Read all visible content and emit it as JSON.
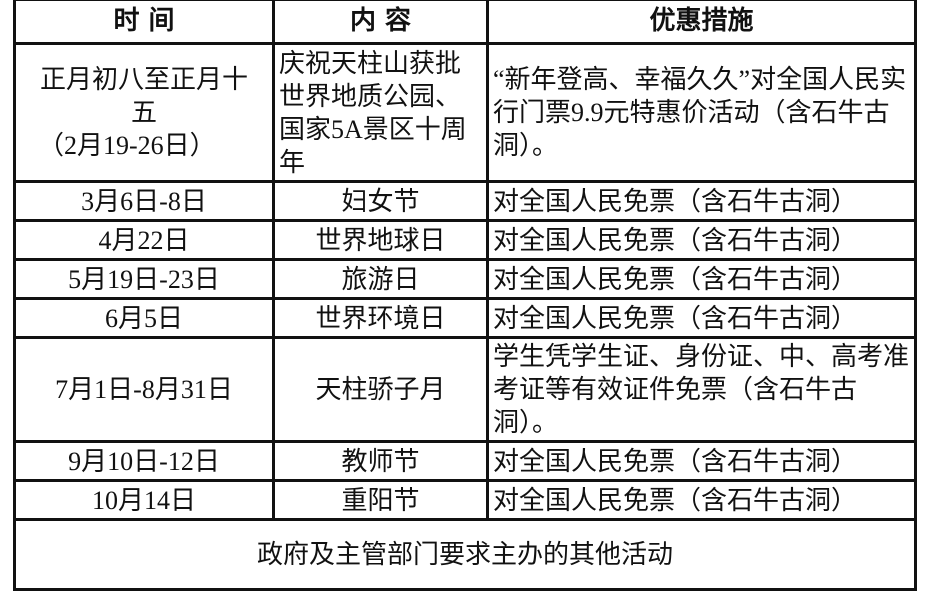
{
  "headers": [
    "时 间",
    "内 容",
    "优惠措施"
  ],
  "rows": [
    {
      "time": "正月初八至正月十五\n（2月19-26日）",
      "time_line1": "正月初八至正月十",
      "time_line2": "五",
      "time_line3": "（2月19-26日）",
      "content": "庆祝天柱山获批世界地质公园、国家5A景区十周年",
      "offer": "“新年登高、幸福久久”对全国人民实行门票9.9元特惠价活动（含石牛古洞）。"
    },
    {
      "time": "3月6日-8日",
      "content": "妇女节",
      "offer": "对全国人民免票（含石牛古洞）"
    },
    {
      "time": "4月22日",
      "content": "世界地球日",
      "offer": "对全国人民免票（含石牛古洞）"
    },
    {
      "time": "5月19日-23日",
      "content": "旅游日",
      "offer": "对全国人民免票（含石牛古洞）"
    },
    {
      "time": "6月5日",
      "content": "世界环境日",
      "offer": "对全国人民免票（含石牛古洞）"
    },
    {
      "time": "7月1日-8月31日",
      "content": "天柱骄子月",
      "offer": "学生凭学生证、身份证、中、高考准考证等有效证件免票（含石牛古洞）。"
    },
    {
      "time": "9月10日-12日",
      "content": "教师节",
      "offer": "对全国人民免票（含石牛古洞）"
    },
    {
      "time": "10月14日",
      "content": "重阳节",
      "offer": "对全国人民免票（含石牛古洞）"
    }
  ],
  "footer": "政府及主管部门要求主办的其他活动"
}
